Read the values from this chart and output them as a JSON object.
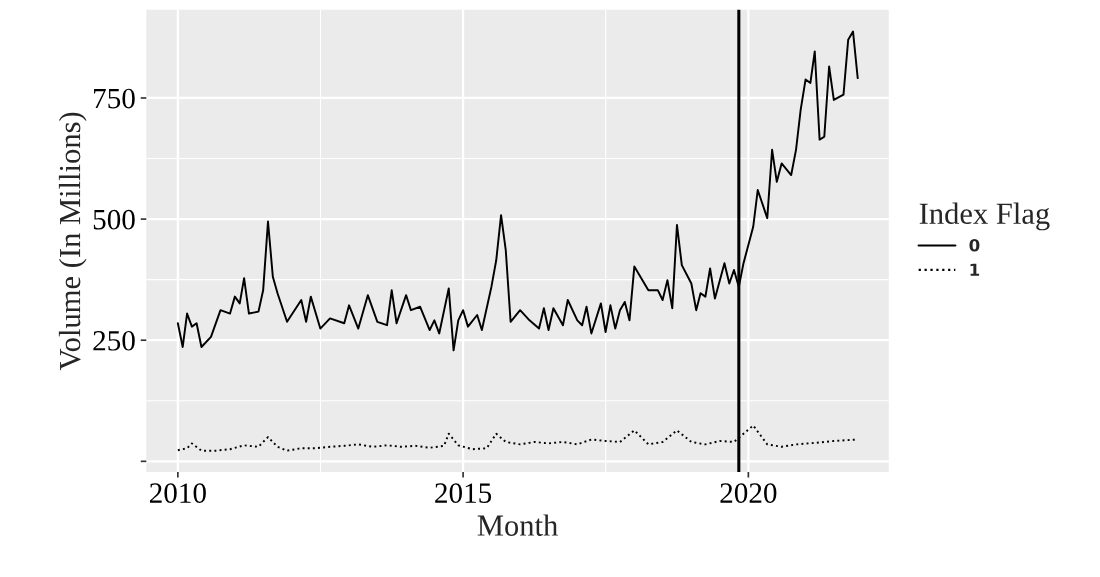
{
  "chart_data": {
    "type": "line",
    "xlabel": "Month",
    "ylabel": "Volume (In Millions)",
    "legend_title": "Index Flag",
    "legend": "right",
    "grid": true,
    "xlim": [
      "2009-06-13",
      "2022-06-18"
    ],
    "ylim": [
      -22,
      932
    ],
    "xticks": [
      {
        "value": "2010-01-01",
        "label": "2010"
      },
      {
        "value": "2015-01-01",
        "label": "2015"
      },
      {
        "value": "2020-01-01",
        "label": "2020"
      }
    ],
    "yticks": [
      {
        "value": 0,
        "label": null
      },
      250,
      500,
      750
    ],
    "ref_lines": [
      {
        "axis": "x",
        "value": "2019-11",
        "color": "#000000"
      }
    ],
    "series": [
      {
        "name": "0",
        "color": "#000000",
        "line_style": "solid",
        "x": [
          "2010-01",
          "2010-02",
          "2010-03",
          "2010-04",
          "2010-05",
          "2010-06",
          "2010-08",
          "2010-10",
          "2010-12",
          "2011-01",
          "2011-02",
          "2011-03",
          "2011-04",
          "2011-06",
          "2011-07",
          "2011-08",
          "2011-09",
          "2011-10",
          "2011-12",
          "2012-03",
          "2012-04",
          "2012-05",
          "2012-07",
          "2012-09",
          "2012-12",
          "2013-01",
          "2013-03",
          "2013-05",
          "2013-07",
          "2013-09",
          "2013-10",
          "2013-11",
          "2014-01",
          "2014-02",
          "2014-04",
          "2014-06",
          "2014-07",
          "2014-08",
          "2014-10",
          "2014-11",
          "2014-12",
          "2015-01",
          "2015-02",
          "2015-04",
          "2015-05",
          "2015-07",
          "2015-08",
          "2015-09",
          "2015-10",
          "2015-11",
          "2016-01",
          "2016-03",
          "2016-05",
          "2016-06",
          "2016-07",
          "2016-08",
          "2016-10",
          "2016-11",
          "2017-01",
          "2017-02",
          "2017-03",
          "2017-04",
          "2017-06",
          "2017-07",
          "2017-08",
          "2017-09",
          "2017-10",
          "2017-11",
          "2017-12",
          "2018-01",
          "2018-04",
          "2018-06",
          "2018-07",
          "2018-08",
          "2018-09",
          "2018-10",
          "2018-11",
          "2019-01",
          "2019-02",
          "2019-03",
          "2019-04",
          "2019-05",
          "2019-06",
          "2019-08",
          "2019-09",
          "2019-10",
          "2019-11",
          "2019-12",
          "2020-02",
          "2020-03",
          "2020-05",
          "2020-06",
          "2020-07",
          "2020-08",
          "2020-10",
          "2020-11",
          "2020-12",
          "2021-01",
          "2021-02",
          "2021-03",
          "2021-04",
          "2021-05",
          "2021-06",
          "2021-07",
          "2021-09",
          "2021-10",
          "2021-11",
          "2021-12"
        ],
        "values": [
          285,
          236,
          305,
          278,
          285,
          236,
          257,
          312,
          305,
          340,
          326,
          378,
          305,
          309,
          353,
          495,
          381,
          347,
          288,
          333,
          288,
          340,
          274,
          295,
          285,
          322,
          274,
          343,
          288,
          281,
          353,
          285,
          343,
          312,
          319,
          271,
          291,
          264,
          357,
          229,
          291,
          312,
          278,
          302,
          271,
          360,
          415,
          508,
          436,
          288,
          312,
          291,
          274,
          316,
          271,
          316,
          281,
          333,
          291,
          281,
          319,
          264,
          326,
          267,
          322,
          274,
          312,
          329,
          291,
          402,
          353,
          353,
          333,
          374,
          316,
          488,
          405,
          367,
          312,
          347,
          340,
          398,
          336,
          409,
          367,
          395,
          360,
          409,
          484,
          560,
          502,
          643,
          577,
          615,
          591,
          643,
          726,
          788,
          781,
          846,
          664,
          670,
          815,
          746,
          757,
          870,
          887,
          791
        ]
      },
      {
        "name": "1",
        "color": "#000000",
        "line_style": "dotted",
        "x": [
          "2010-01",
          "2010-03",
          "2010-04",
          "2010-06",
          "2010-09",
          "2010-12",
          "2011-03",
          "2011-06",
          "2011-08",
          "2011-10",
          "2011-12",
          "2012-03",
          "2012-06",
          "2012-09",
          "2012-12",
          "2013-03",
          "2013-06",
          "2013-09",
          "2013-12",
          "2014-03",
          "2014-06",
          "2014-09",
          "2014-10",
          "2014-12",
          "2015-03",
          "2015-06",
          "2015-08",
          "2015-10",
          "2016-01",
          "2016-04",
          "2016-07",
          "2016-10",
          "2017-01",
          "2017-04",
          "2017-07",
          "2017-10",
          "2018-01",
          "2018-04",
          "2018-07",
          "2018-10",
          "2019-01",
          "2019-04",
          "2019-07",
          "2019-10",
          "2020-02",
          "2020-05",
          "2020-08",
          "2020-11",
          "2021-03",
          "2021-07",
          "2021-12"
        ],
        "values": [
          23,
          27,
          37,
          22,
          22,
          25,
          33,
          30,
          50,
          30,
          22,
          27,
          27,
          30,
          32,
          35,
          30,
          33,
          30,
          32,
          28,
          32,
          57,
          33,
          25,
          27,
          57,
          40,
          35,
          40,
          37,
          40,
          35,
          45,
          42,
          40,
          64,
          35,
          40,
          64,
          40,
          35,
          42,
          40,
          74,
          35,
          30,
          35,
          38,
          42,
          45
        ]
      }
    ]
  }
}
